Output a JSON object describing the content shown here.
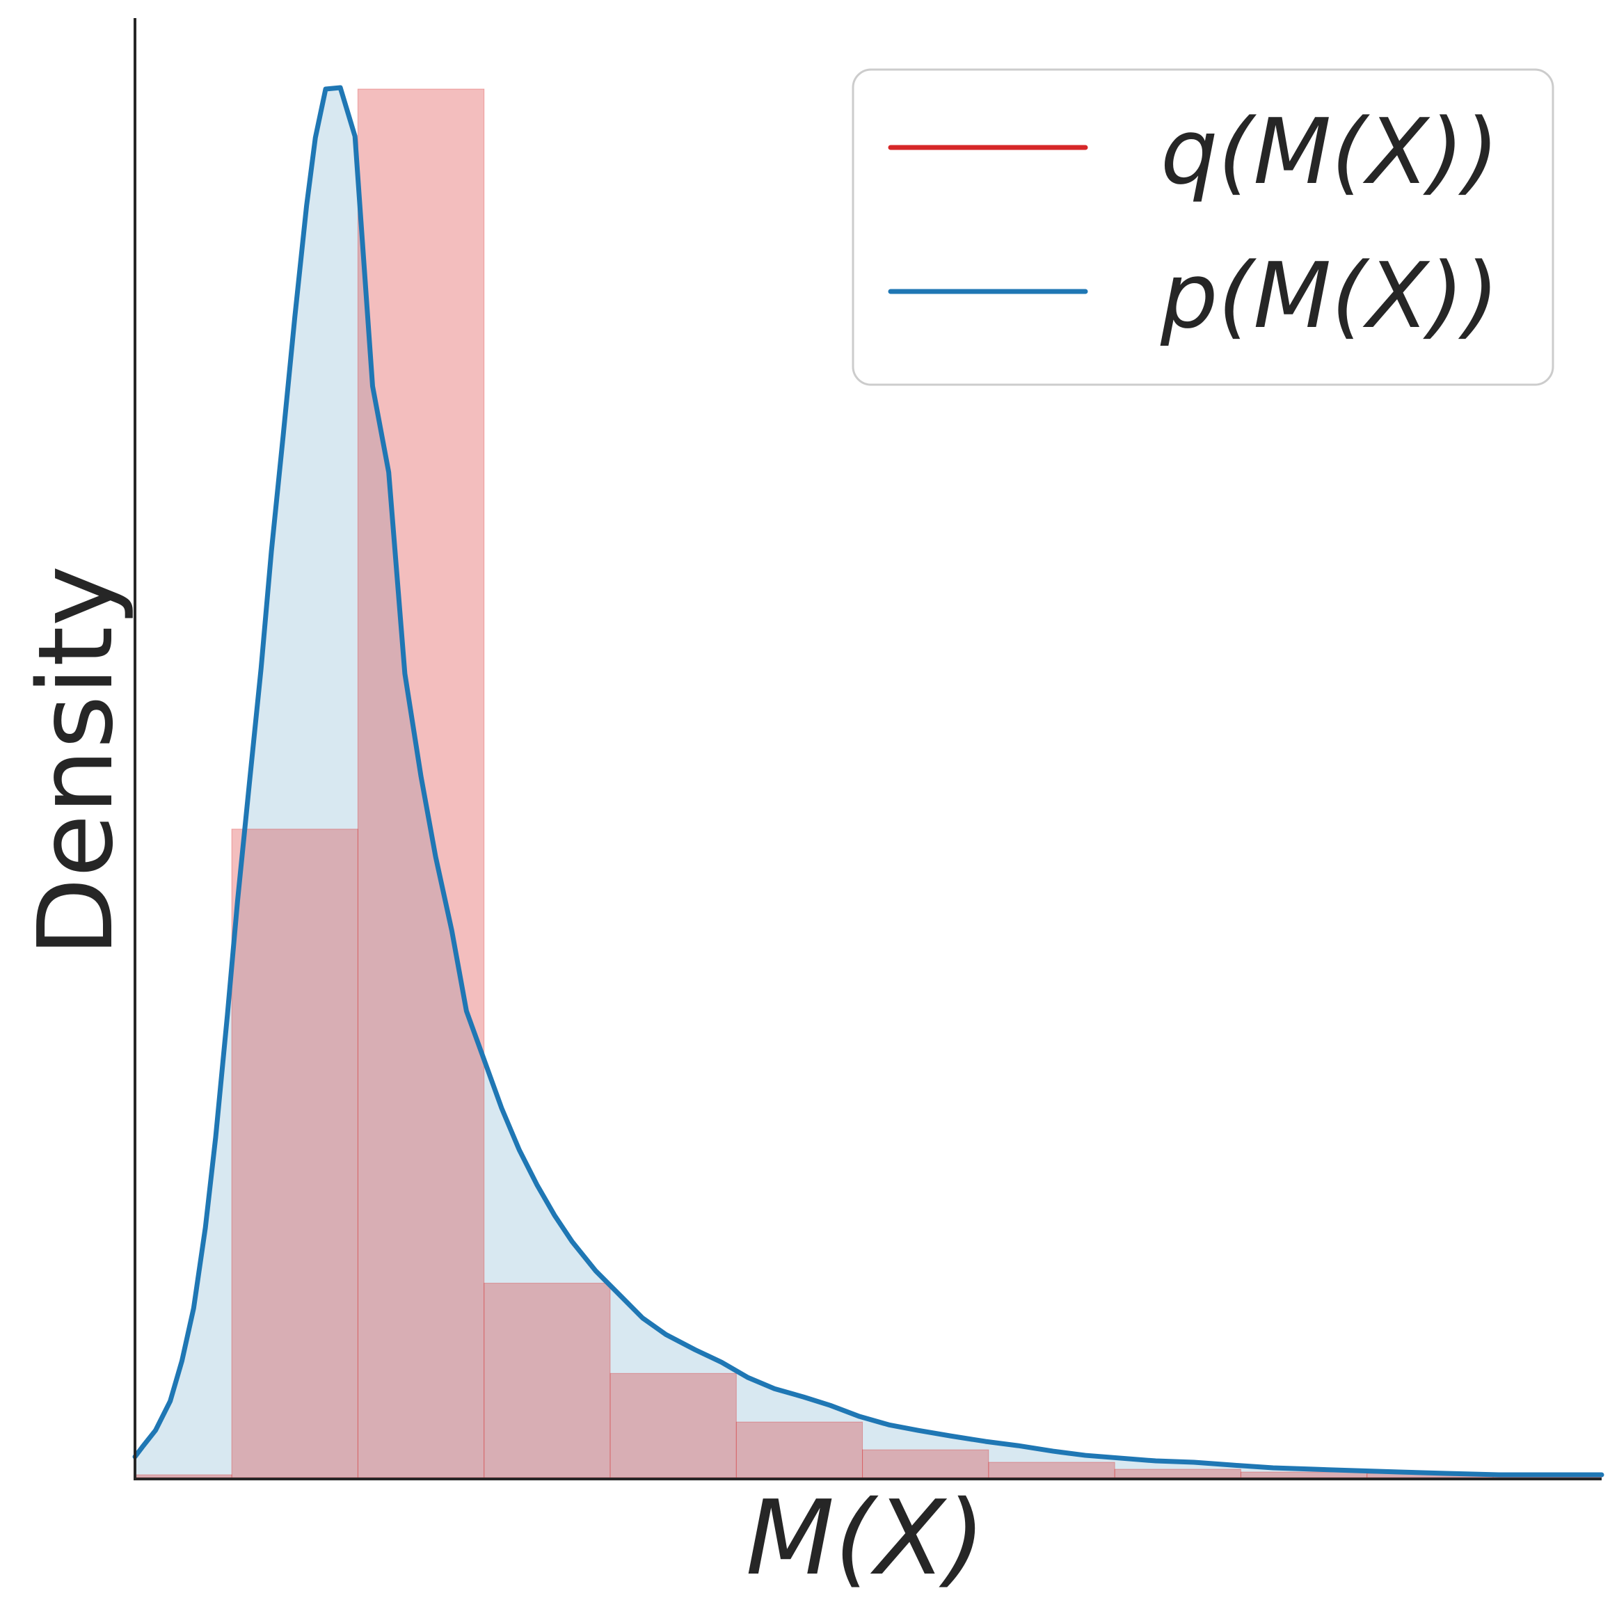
{
  "chart_data": {
    "type": "histogram",
    "xlabel": "M(X)",
    "ylabel": "Density",
    "xlim": [
      0,
      1000
    ],
    "ylim": [
      0,
      1000
    ],
    "grid": false,
    "legend_position": "top-right",
    "colors": {
      "q": "#d62728",
      "p": "#1f77b4",
      "q_fill": "#f1bbbe",
      "p_fill": "#d8e8f1",
      "axis": "#262626",
      "legend_border": "#cccccc"
    },
    "legend": [
      {
        "key": "q",
        "label": "q(M(X))"
      },
      {
        "key": "p",
        "label": "p(M(X))"
      }
    ],
    "series": [
      {
        "name": "q(M(X))",
        "kind": "histogram",
        "bins": [
          {
            "x0": 0,
            "x1": 66,
            "value": 2
          },
          {
            "x0": 66,
            "x1": 152,
            "value": 467
          },
          {
            "x0": 152,
            "x1": 238,
            "value": 1000
          },
          {
            "x0": 238,
            "x1": 324,
            "value": 140
          },
          {
            "x0": 324,
            "x1": 410,
            "value": 75
          },
          {
            "x0": 410,
            "x1": 496,
            "value": 40
          },
          {
            "x0": 496,
            "x1": 582,
            "value": 20
          },
          {
            "x0": 582,
            "x1": 668,
            "value": 11
          },
          {
            "x0": 668,
            "x1": 754,
            "value": 6
          },
          {
            "x0": 754,
            "x1": 840,
            "value": 4
          },
          {
            "x0": 840,
            "x1": 926,
            "value": 3
          },
          {
            "x0": 926,
            "x1": 1000,
            "value": 2
          }
        ]
      },
      {
        "name": "p(M(X))",
        "kind": "density",
        "points": [
          [
            0,
            15
          ],
          [
            5,
            22
          ],
          [
            14,
            34
          ],
          [
            24,
            55
          ],
          [
            32,
            84
          ],
          [
            40,
            122
          ],
          [
            48,
            180
          ],
          [
            55,
            245
          ],
          [
            63,
            333
          ],
          [
            70,
            416
          ],
          [
            78,
            500
          ],
          [
            86,
            583
          ],
          [
            93,
            667
          ],
          [
            101,
            750
          ],
          [
            109,
            836
          ],
          [
            117,
            916
          ],
          [
            123,
            965
          ],
          [
            130,
            1000
          ],
          [
            140,
            1001
          ],
          [
            150,
            966
          ],
          [
            162,
            786
          ],
          [
            173,
            724
          ],
          [
            184,
            579
          ],
          [
            195,
            505
          ],
          [
            205,
            447
          ],
          [
            216,
            394
          ],
          [
            226,
            336
          ],
          [
            238,
            301
          ],
          [
            250,
            266
          ],
          [
            262,
            236
          ],
          [
            274,
            211
          ],
          [
            286,
            189
          ],
          [
            298,
            170
          ],
          [
            314,
            149
          ],
          [
            330,
            132
          ],
          [
            346,
            115
          ],
          [
            362,
            103
          ],
          [
            382,
            92
          ],
          [
            400,
            83
          ],
          [
            418,
            72
          ],
          [
            436,
            64
          ],
          [
            456,
            58
          ],
          [
            474,
            52
          ],
          [
            494,
            44
          ],
          [
            514,
            38
          ],
          [
            534,
            34
          ],
          [
            556,
            30
          ],
          [
            580,
            26
          ],
          [
            602,
            23
          ],
          [
            626,
            19
          ],
          [
            648,
            16
          ],
          [
            672,
            14
          ],
          [
            696,
            12
          ],
          [
            722,
            11
          ],
          [
            748,
            9
          ],
          [
            776,
            7
          ],
          [
            804,
            6
          ],
          [
            832,
            5
          ],
          [
            862,
            4
          ],
          [
            894,
            3
          ],
          [
            930,
            2
          ],
          [
            966,
            2
          ],
          [
            1000,
            2
          ]
        ]
      }
    ]
  }
}
